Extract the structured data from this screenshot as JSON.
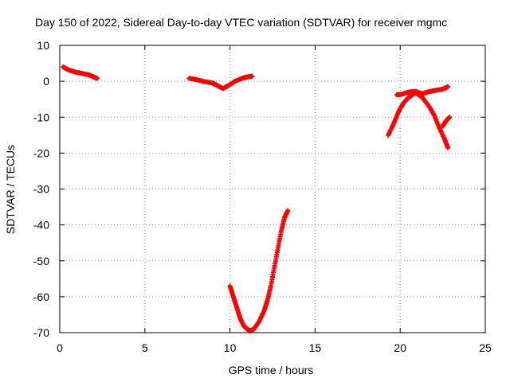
{
  "chart_data": {
    "type": "scatter",
    "title": "Day 150 of 2022, Sidereal Day-to-day VTEC variation (SDTVAR) for receiver mgmc",
    "xlabel": "GPS time / hours",
    "ylabel": "SDTVAR / TECUs",
    "xlim": [
      0,
      25
    ],
    "ylim": [
      -70,
      10
    ],
    "xticks": [
      0,
      5,
      10,
      15,
      20,
      25
    ],
    "yticks": [
      10,
      0,
      -10,
      -20,
      -30,
      -40,
      -50,
      -60,
      -70
    ],
    "grid": true,
    "legend": "none",
    "marker": "plus",
    "color": "#ff0000",
    "series": [
      {
        "points": [
          [
            0.2,
            4.0
          ],
          [
            0.5,
            3.2
          ],
          [
            0.9,
            2.6
          ],
          [
            1.3,
            2.2
          ],
          [
            1.7,
            1.8
          ],
          [
            2.0,
            1.2
          ],
          [
            2.2,
            0.8
          ]
        ]
      },
      {
        "points": [
          [
            7.6,
            0.8
          ],
          [
            8.0,
            0.5
          ],
          [
            8.5,
            -0.1
          ],
          [
            9.0,
            -0.5
          ],
          [
            9.3,
            -1.3
          ],
          [
            9.6,
            -2.0
          ],
          [
            9.9,
            -1.2
          ],
          [
            10.3,
            0.0
          ],
          [
            10.7,
            0.8
          ],
          [
            11.0,
            1.2
          ],
          [
            11.3,
            1.4
          ]
        ]
      },
      {
        "points": [
          [
            10.0,
            -57.0
          ],
          [
            10.2,
            -60.0
          ],
          [
            10.4,
            -63.0
          ],
          [
            10.6,
            -66.0
          ],
          [
            10.8,
            -68.0
          ],
          [
            11.0,
            -69.0
          ],
          [
            11.2,
            -69.5
          ],
          [
            11.4,
            -69.0
          ],
          [
            11.7,
            -67.0
          ],
          [
            12.0,
            -64.0
          ],
          [
            12.2,
            -61.0
          ],
          [
            12.4,
            -57.0
          ],
          [
            12.6,
            -52.0
          ],
          [
            12.8,
            -47.0
          ],
          [
            13.0,
            -42.0
          ],
          [
            13.2,
            -38.0
          ],
          [
            13.4,
            -36.0
          ]
        ]
      },
      {
        "points": [
          [
            19.3,
            -15.0
          ],
          [
            19.6,
            -12.0
          ],
          [
            19.9,
            -8.5
          ],
          [
            20.2,
            -6.0
          ],
          [
            20.5,
            -4.5
          ],
          [
            20.9,
            -3.2
          ],
          [
            21.3,
            -4.5
          ],
          [
            21.7,
            -7.0
          ],
          [
            22.0,
            -9.5
          ],
          [
            22.3,
            -13.0
          ],
          [
            22.6,
            -16.0
          ],
          [
            22.8,
            -18.5
          ]
        ]
      },
      {
        "points": [
          [
            19.8,
            -3.8
          ],
          [
            20.1,
            -3.6
          ],
          [
            20.5,
            -3.0
          ],
          [
            20.9,
            -2.8
          ],
          [
            21.3,
            -3.5
          ],
          [
            21.6,
            -3.0
          ],
          [
            22.0,
            -2.6
          ],
          [
            22.4,
            -2.3
          ],
          [
            22.6,
            -2.0
          ],
          [
            22.8,
            -1.5
          ]
        ]
      },
      {
        "points": [
          [
            22.5,
            -12.5
          ],
          [
            22.7,
            -11.0
          ],
          [
            22.9,
            -10.0
          ]
        ]
      }
    ]
  }
}
